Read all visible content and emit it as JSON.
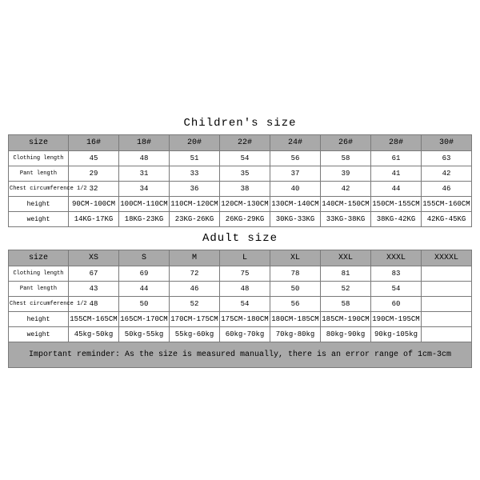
{
  "children": {
    "title": "Children's size",
    "row_labels": [
      "size",
      "Clothing length",
      "Pant length",
      "Chest circumference 1/2",
      "height",
      "weight"
    ],
    "cols": [
      "16#",
      "18#",
      "20#",
      "22#",
      "24#",
      "26#",
      "28#",
      "30#"
    ],
    "rows": [
      [
        "45",
        "48",
        "51",
        "54",
        "56",
        "58",
        "61",
        "63"
      ],
      [
        "29",
        "31",
        "33",
        "35",
        "37",
        "39",
        "41",
        "42"
      ],
      [
        "32",
        "34",
        "36",
        "38",
        "40",
        "42",
        "44",
        "46"
      ],
      [
        "90CM-100CM",
        "100CM-110CM",
        "110CM-120CM",
        "120CM-130CM",
        "130CM-140CM",
        "140CM-150CM",
        "150CM-155CM",
        "155CM-160CM"
      ],
      [
        "14KG-17KG",
        "18KG-23KG",
        "23KG-26KG",
        "26KG-29KG",
        "30KG-33KG",
        "33KG-38KG",
        "38KG-42KG",
        "42KG-45KG"
      ]
    ]
  },
  "adult": {
    "title": "Adult size",
    "row_labels": [
      "size",
      "Clothing length",
      "Pant length",
      "Chest circumference 1/2",
      "height",
      "weight"
    ],
    "cols": [
      "XS",
      "S",
      "M",
      "L",
      "XL",
      "XXL",
      "XXXL",
      "XXXXL"
    ],
    "rows": [
      [
        "67",
        "69",
        "72",
        "75",
        "78",
        "81",
        "83",
        ""
      ],
      [
        "43",
        "44",
        "46",
        "48",
        "50",
        "52",
        "54",
        ""
      ],
      [
        "48",
        "50",
        "52",
        "54",
        "56",
        "58",
        "60",
        ""
      ],
      [
        "155CM-165CM",
        "165CM-170CM",
        "170CM-175CM",
        "175CM-180CM",
        "180CM-185CM",
        "185CM-190CM",
        "190CM-195CM",
        ""
      ],
      [
        "45kg-50kg",
        "50kg-55kg",
        "55kg-60kg",
        "60kg-70kg",
        "70kg-80kg",
        "80kg-90kg",
        "90kg-105kg",
        ""
      ]
    ]
  },
  "reminder": "Important reminder: As the size is measured manually, there is an error range of 1cm-3cm",
  "style": {
    "header_bg": "#a9a9a9",
    "border_color": "#7a7a7a",
    "font": "Courier New",
    "title_fontsize": 14,
    "cell_fontsize": 9
  }
}
